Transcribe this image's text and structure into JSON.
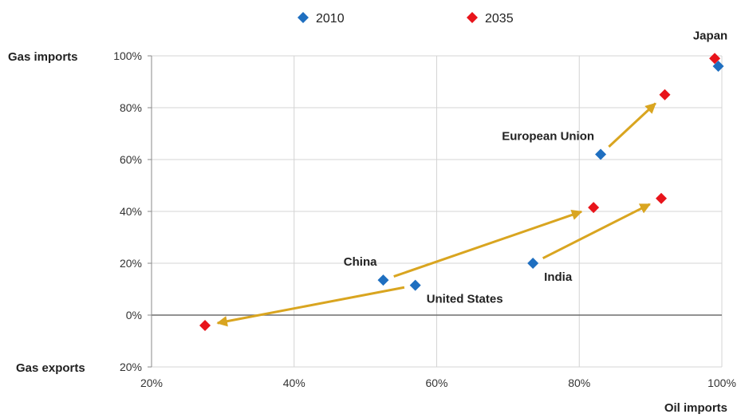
{
  "chart_data": {
    "type": "scatter",
    "xlabel": "Oil imports",
    "ylabel_top": "Gas imports",
    "ylabel_bottom": "Gas exports",
    "xlim": [
      20,
      100
    ],
    "ylim": [
      -20,
      100
    ],
    "x_ticks": [
      {
        "value": 20,
        "label": "20%"
      },
      {
        "value": 40,
        "label": "40%"
      },
      {
        "value": 60,
        "label": "60%"
      },
      {
        "value": 80,
        "label": "80%"
      },
      {
        "value": 100,
        "label": "100%"
      }
    ],
    "y_ticks": [
      {
        "value": 100,
        "label": "100%"
      },
      {
        "value": 80,
        "label": "80%"
      },
      {
        "value": 60,
        "label": "60%"
      },
      {
        "value": 40,
        "label": "40%"
      },
      {
        "value": 20,
        "label": "20%"
      },
      {
        "value": 0,
        "label": "0%"
      },
      {
        "value": -20,
        "label": "20%"
      }
    ],
    "grid": true,
    "legend_position": "top",
    "series": [
      {
        "name": "2010",
        "color": "#1f6fc0",
        "marker": "diamond"
      },
      {
        "name": "2035",
        "color": "#e8141b",
        "marker": "diamond"
      }
    ],
    "arrow_color": "#d9a520",
    "regions": [
      {
        "name": "Japan",
        "label": "Japan",
        "y2010": [
          99.5,
          96
        ],
        "y2035": [
          99,
          99
        ],
        "label_side": "above"
      },
      {
        "name": "European Union",
        "label": "European Union",
        "y2010": [
          83,
          62
        ],
        "y2035": [
          92,
          85
        ],
        "label_side": "upper-left"
      },
      {
        "name": "India",
        "label": "India",
        "y2010": [
          73.5,
          20
        ],
        "y2035": [
          91.5,
          45
        ],
        "label_side": "lower-right"
      },
      {
        "name": "China",
        "label": "China",
        "y2010": [
          52.5,
          13.5
        ],
        "y2035": [
          82,
          41.5
        ],
        "label_side": "upper-left"
      },
      {
        "name": "United States",
        "label": "United States",
        "y2010": [
          57,
          11.5
        ],
        "y2035": [
          27.5,
          -4
        ],
        "label_side": "lower-right"
      }
    ]
  }
}
